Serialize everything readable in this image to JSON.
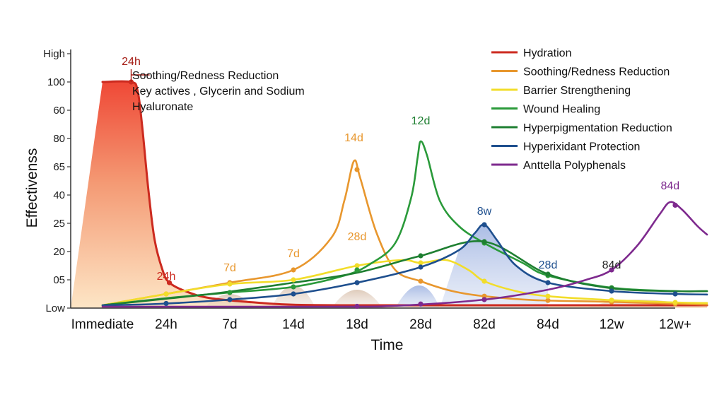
{
  "chart_data": {
    "type": "line",
    "xlabel": "Time",
    "ylabel": "Effectivenss",
    "x_categories": [
      "Immediate",
      "24h",
      "7d",
      "14d",
      "18d",
      "28d",
      "82d",
      "84d",
      "12w",
      "12w+"
    ],
    "y_ticks": [
      "Low",
      "05",
      "20",
      "25",
      "40",
      "65",
      "80",
      "60",
      "100",
      "High"
    ],
    "grid": false,
    "legend_position": "top-right",
    "callout": {
      "label": "24h",
      "text_lines": [
        "Soothing/Redness Reduction",
        "Key actives , Glycerin and Sodium",
        "Hyaluronate"
      ]
    },
    "series": [
      {
        "name": "Hydration",
        "color": "#cc2a1f",
        "points": [
          [
            0,
            8.0
          ],
          [
            0.45,
            8.0
          ],
          [
            0.55,
            7.7
          ],
          [
            0.62,
            6.5
          ],
          [
            0.72,
            4.2
          ],
          [
            0.82,
            2.4
          ],
          [
            0.95,
            1.3
          ],
          [
            1.05,
            0.9
          ],
          [
            1.3,
            0.6
          ],
          [
            1.7,
            0.35
          ],
          [
            2.5,
            0.18
          ],
          [
            3,
            0.12
          ],
          [
            4,
            0.1
          ],
          [
            5,
            0.1
          ],
          [
            6,
            0.1
          ],
          [
            7,
            0.1
          ],
          [
            8,
            0.1
          ],
          [
            9,
            0.1
          ],
          [
            9.5,
            0.1
          ]
        ],
        "markers": [
          0.45,
          1.05
        ]
      },
      {
        "name": "Soothing/Redness Reduction",
        "color": "#e8972e",
        "points": [
          [
            0,
            0.1
          ],
          [
            1,
            0.5
          ],
          [
            2,
            0.9
          ],
          [
            3,
            1.35
          ],
          [
            3.6,
            2.5
          ],
          [
            3.8,
            3.8
          ],
          [
            3.95,
            5.2
          ],
          [
            4.05,
            4.6
          ],
          [
            4.3,
            2.7
          ],
          [
            4.6,
            1.35
          ],
          [
            5,
            0.95
          ],
          [
            5.5,
            0.6
          ],
          [
            6,
            0.42
          ],
          [
            6.8,
            0.28
          ],
          [
            8,
            0.22
          ],
          [
            9,
            0.15
          ],
          [
            9.5,
            0.12
          ]
        ],
        "markers": [
          1,
          2,
          3,
          4,
          5,
          6,
          7,
          8,
          9
        ]
      },
      {
        "name": "Barrier Strengthening",
        "color": "#f2dd2a",
        "points": [
          [
            0,
            0.1
          ],
          [
            1,
            0.5
          ],
          [
            2,
            0.85
          ],
          [
            3,
            1.0
          ],
          [
            4,
            1.5
          ],
          [
            4.7,
            1.7
          ],
          [
            5,
            1.6
          ],
          [
            5.4,
            1.7
          ],
          [
            5.75,
            1.35
          ],
          [
            6,
            0.95
          ],
          [
            6.5,
            0.6
          ],
          [
            7,
            0.42
          ],
          [
            8,
            0.28
          ],
          [
            9,
            0.2
          ],
          [
            9.5,
            0.18
          ]
        ],
        "markers": [
          1,
          2,
          3,
          4,
          5,
          6,
          7,
          8,
          9
        ]
      },
      {
        "name": "Wound Healing",
        "color": "#2a9a3a",
        "points": [
          [
            0,
            0.1
          ],
          [
            1,
            0.35
          ],
          [
            2,
            0.55
          ],
          [
            3,
            0.75
          ],
          [
            3.8,
            1.15
          ],
          [
            4.2,
            1.55
          ],
          [
            4.6,
            2.3
          ],
          [
            4.85,
            3.9
          ],
          [
            4.95,
            5.3
          ],
          [
            5,
            5.9
          ],
          [
            5.1,
            5.4
          ],
          [
            5.3,
            3.8
          ],
          [
            5.6,
            2.9
          ],
          [
            6,
            2.3
          ],
          [
            6.6,
            1.6
          ],
          [
            7,
            1.15
          ],
          [
            8,
            0.72
          ],
          [
            9,
            0.6
          ],
          [
            9.5,
            0.6
          ]
        ],
        "markers": [
          2,
          3,
          4,
          6,
          7,
          8
        ]
      },
      {
        "name": "Hyperpigmentation Reduction",
        "color": "#1e7f31",
        "points": [
          [
            0,
            0.1
          ],
          [
            1.7,
            0.5
          ],
          [
            3,
            0.9
          ],
          [
            4,
            1.25
          ],
          [
            5,
            1.85
          ],
          [
            6,
            2.35
          ],
          [
            7,
            1.2
          ],
          [
            8,
            0.7
          ],
          [
            9,
            0.6
          ],
          [
            9.5,
            0.6
          ]
        ],
        "markers": [
          5,
          6,
          7,
          8
        ]
      },
      {
        "name": "Hyperixidant Protection",
        "color": "#1e4f8e",
        "points": [
          [
            0,
            0.1
          ],
          [
            0.9,
            0.15
          ],
          [
            2,
            0.3
          ],
          [
            3,
            0.5
          ],
          [
            4,
            0.9
          ],
          [
            5,
            1.45
          ],
          [
            5.6,
            2.05
          ],
          [
            5.85,
            2.65
          ],
          [
            6,
            2.95
          ],
          [
            6.2,
            2.4
          ],
          [
            6.5,
            1.5
          ],
          [
            7,
            0.9
          ],
          [
            8,
            0.6
          ],
          [
            9,
            0.5
          ],
          [
            9.5,
            0.48
          ]
        ],
        "markers": [
          1,
          2,
          3,
          4,
          5,
          6,
          7,
          8,
          9
        ]
      },
      {
        "name": "Anttella Polyphenals",
        "color": "#7e2a8e",
        "points": [
          [
            0,
            0.05
          ],
          [
            3.5,
            0.05
          ],
          [
            4.6,
            0.08
          ],
          [
            6,
            0.3
          ],
          [
            7,
            0.65
          ],
          [
            7.6,
            1.0
          ],
          [
            8,
            1.35
          ],
          [
            8.4,
            2.2
          ],
          [
            8.75,
            3.3
          ],
          [
            8.92,
            3.75
          ],
          [
            9.1,
            3.5
          ],
          [
            9.35,
            2.9
          ],
          [
            9.5,
            2.6
          ]
        ],
        "markers": [
          4,
          5,
          6,
          8,
          9
        ]
      }
    ],
    "peak_labels": [
      {
        "text": "24h",
        "x": 1.0,
        "y": 1.0,
        "color": "#cc2a1f"
      },
      {
        "text": "7d",
        "x": 2.0,
        "y": 1.3,
        "color": "#e8972e"
      },
      {
        "text": "7d",
        "x": 3.0,
        "y": 1.8,
        "color": "#e8972e"
      },
      {
        "text": "14d",
        "x": 3.95,
        "y": 5.9,
        "color": "#e8972e"
      },
      {
        "text": "28d",
        "x": 4.0,
        "y": 2.4,
        "color": "#e8972e"
      },
      {
        "text": "12d",
        "x": 5.0,
        "y": 6.5,
        "color": "#1e7f31"
      },
      {
        "text": "8w",
        "x": 6.0,
        "y": 3.3,
        "color": "#1e4f8e"
      },
      {
        "text": "28d",
        "x": 7.0,
        "y": 1.4,
        "color": "#1e4f8e"
      },
      {
        "text": "84d",
        "x": 8.0,
        "y": 1.4,
        "color": "#222222"
      },
      {
        "text": "84d",
        "x": 8.92,
        "y": 4.2,
        "color": "#7e2a8e"
      }
    ]
  }
}
